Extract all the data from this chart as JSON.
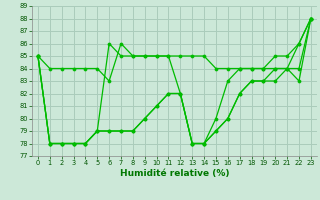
{
  "xlabel": "Humidité relative (%)",
  "background_color": "#cce8d8",
  "grid_color": "#aaccbb",
  "line_color": "#00bb00",
  "xlim": [
    -0.5,
    23.5
  ],
  "ylim": [
    77,
    89
  ],
  "xticks": [
    0,
    1,
    2,
    3,
    4,
    5,
    6,
    7,
    8,
    9,
    10,
    11,
    12,
    13,
    14,
    15,
    16,
    17,
    18,
    19,
    20,
    21,
    22,
    23
  ],
  "yticks": [
    77,
    78,
    79,
    80,
    81,
    82,
    83,
    84,
    85,
    86,
    87,
    88,
    89
  ],
  "lines": [
    [
      85,
      84,
      84,
      84,
      84,
      84,
      83,
      86,
      85,
      85,
      85,
      85,
      85,
      85,
      85,
      84,
      84,
      84,
      84,
      84,
      84,
      84,
      86,
      88
    ],
    [
      85,
      78,
      78,
      78,
      78,
      79,
      86,
      85,
      85,
      85,
      85,
      85,
      82,
      78,
      78,
      80,
      83,
      84,
      84,
      84,
      85,
      85,
      86,
      88
    ],
    [
      85,
      78,
      78,
      78,
      78,
      79,
      79,
      79,
      79,
      80,
      81,
      82,
      82,
      78,
      78,
      79,
      80,
      82,
      83,
      83,
      83,
      84,
      83,
      88
    ],
    [
      85,
      78,
      78,
      78,
      78,
      79,
      79,
      79,
      79,
      80,
      81,
      82,
      82,
      78,
      78,
      79,
      80,
      82,
      83,
      83,
      84,
      84,
      84,
      88
    ]
  ]
}
